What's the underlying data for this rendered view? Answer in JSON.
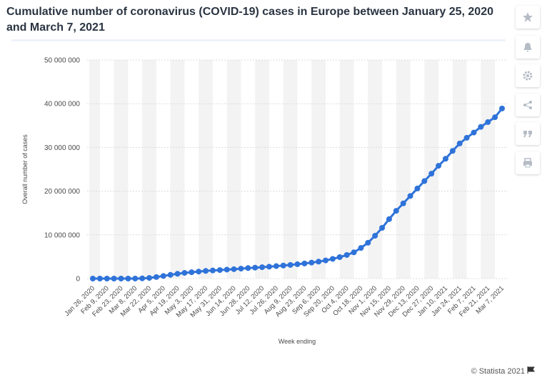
{
  "header": {
    "title": "Cumulative number of coronavirus (COVID-19) cases in Europe between January 25, 2020 and March 7, 2021"
  },
  "chart_data": {
    "type": "line",
    "y_label": "Overall number of cases",
    "x_label": "Week ending",
    "color": "#2f73d9",
    "grid": true,
    "categories": [
      "Jan 26, 2020",
      null,
      "Feb 9, 2020",
      null,
      "Feb 23, 2020",
      null,
      "Mar 8, 2020",
      null,
      "Mar 22, 2020",
      null,
      "Apr 5, 2020",
      null,
      "Apr 19, 2020",
      null,
      "May 3, 2020",
      null,
      "May 17, 2020",
      null,
      "May 31, 2020",
      null,
      "Jun 14, 2020",
      null,
      "Jun 28, 2020",
      null,
      "Jul 12, 2020",
      null,
      "Jul 26, 2020",
      null,
      "Aug 9, 2020",
      null,
      "Aug 23, 2020",
      null,
      "Sep 6, 2020",
      null,
      "Sep 20, 2020",
      null,
      "Oct 4, 2020",
      null,
      "Oct 18, 2020",
      null,
      "Nov 1, 2020",
      null,
      "Nov 15, 2020",
      null,
      "Nov 29, 2020",
      null,
      "Dec 13, 2020",
      null,
      "Dec 27, 2020",
      null,
      "Jan 10, 2021",
      null,
      "Jan 24, 2021",
      null,
      "Feb 7, 2021",
      null,
      "Feb 21, 2021",
      null,
      "Mar 7, 2021"
    ],
    "values": [
      0,
      0,
      0,
      0,
      1000,
      2000,
      10000,
      50000,
      150000,
      350000,
      600000,
      850000,
      1100000,
      1300000,
      1450000,
      1600000,
      1750000,
      1850000,
      1950000,
      2050000,
      2150000,
      2270000,
      2400000,
      2500000,
      2600000,
      2720000,
      2850000,
      2980000,
      3120000,
      3280000,
      3450000,
      3650000,
      3880000,
      4150000,
      4500000,
      4900000,
      5400000,
      6000000,
      7000000,
      8200000,
      9800000,
      11600000,
      13600000,
      15500000,
      17200000,
      18900000,
      20600000,
      22300000,
      24000000,
      25800000,
      27400000,
      29200000,
      30900000,
      32200000,
      33400000,
      34700000,
      35800000,
      36900000,
      38900000
    ],
    "ylim": [
      0,
      50000000
    ],
    "yticks": [
      {
        "value": 0,
        "label": "0"
      },
      {
        "value": 10000000,
        "label": "10 000 000"
      },
      {
        "value": 20000000,
        "label": "20 000 000"
      },
      {
        "value": 30000000,
        "label": "30 000 000"
      },
      {
        "value": 40000000,
        "label": "40 000 000"
      },
      {
        "value": 50000000,
        "label": "50 000 000"
      }
    ]
  },
  "footer": {
    "credit": "© Statista 2021"
  }
}
